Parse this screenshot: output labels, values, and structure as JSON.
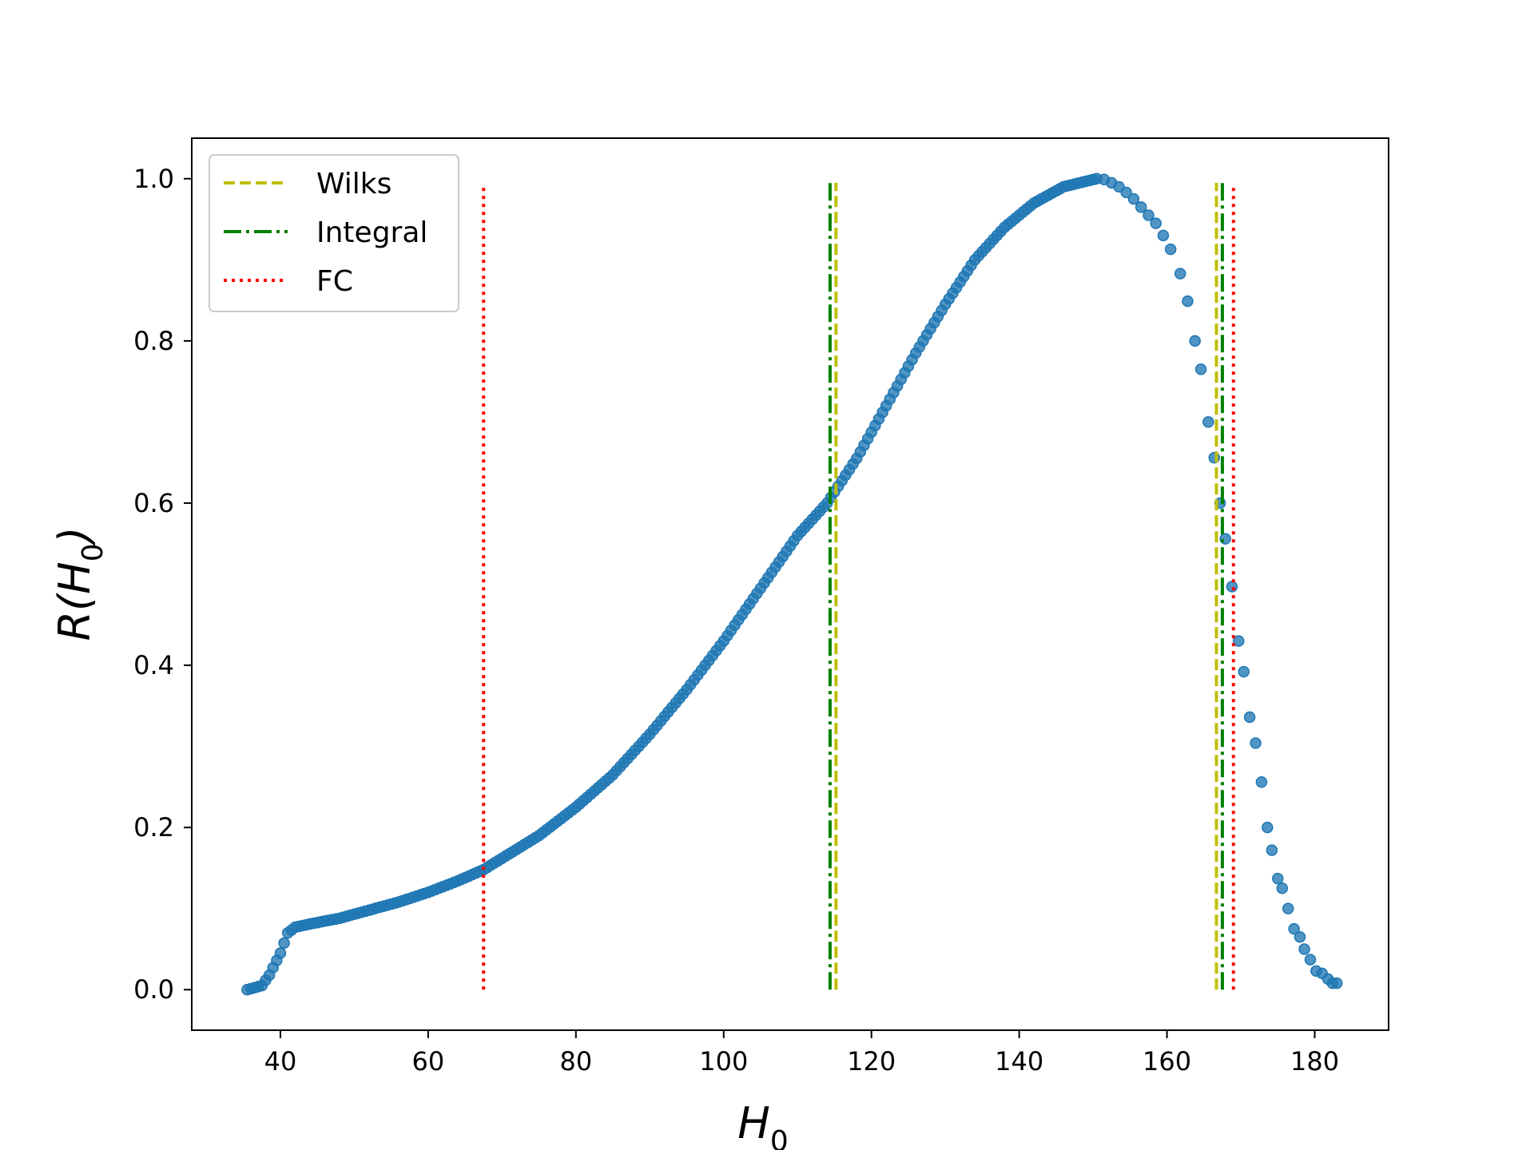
{
  "chart_data": {
    "type": "scatter",
    "title": "",
    "xlabel": "H",
    "xlabel_sub": "0",
    "ylabel_pre": "R(H",
    "ylabel_sub": "0",
    "ylabel_post": ")",
    "xlim": [
      28,
      190
    ],
    "ylim": [
      -0.05,
      1.05
    ],
    "xticks": [
      40,
      60,
      80,
      100,
      120,
      140,
      160,
      180
    ],
    "yticks": [
      0.0,
      0.2,
      0.4,
      0.6,
      0.8,
      1.0
    ],
    "xtick_labels": [
      "40",
      "60",
      "80",
      "100",
      "120",
      "140",
      "160",
      "180"
    ],
    "ytick_labels": [
      "0.0",
      "0.2",
      "0.4",
      "0.6",
      "0.8",
      "1.0"
    ],
    "grid": false,
    "legend_position": "top-left",
    "series": [
      {
        "name": "R(H0)",
        "kind": "points",
        "color": "#1f77b4",
        "x_start": 35.5,
        "x_end": 150.5,
        "x_step": 0.5,
        "anchors": [
          [
            35.5,
            0.0
          ],
          [
            37.5,
            0.005
          ],
          [
            38.5,
            0.018
          ],
          [
            40,
            0.045
          ],
          [
            41,
            0.07
          ],
          [
            42,
            0.077
          ],
          [
            44,
            0.081
          ],
          [
            48,
            0.088
          ],
          [
            52,
            0.098
          ],
          [
            56,
            0.108
          ],
          [
            60,
            0.12
          ],
          [
            64,
            0.134
          ],
          [
            67.5,
            0.148
          ],
          [
            70,
            0.162
          ],
          [
            75,
            0.19
          ],
          [
            80,
            0.225
          ],
          [
            85,
            0.265
          ],
          [
            90,
            0.315
          ],
          [
            95,
            0.37
          ],
          [
            100,
            0.43
          ],
          [
            105,
            0.495
          ],
          [
            110,
            0.56
          ],
          [
            114,
            0.6
          ],
          [
            118,
            0.655
          ],
          [
            122,
            0.72
          ],
          [
            126,
            0.785
          ],
          [
            130,
            0.845
          ],
          [
            134,
            0.9
          ],
          [
            138,
            0.94
          ],
          [
            142,
            0.97
          ],
          [
            146,
            0.99
          ],
          [
            150.5,
            1.0
          ]
        ],
        "tail": [
          [
            151.5,
            0.999
          ],
          [
            152.5,
            0.995
          ],
          [
            153.5,
            0.99
          ],
          [
            154.5,
            0.983
          ],
          [
            155.5,
            0.975
          ],
          [
            156.5,
            0.965
          ],
          [
            157.5,
            0.955
          ],
          [
            158.5,
            0.945
          ],
          [
            159.5,
            0.93
          ],
          [
            160.5,
            0.913
          ],
          [
            161.8,
            0.883
          ],
          [
            162.8,
            0.849
          ],
          [
            163.8,
            0.8
          ],
          [
            164.6,
            0.765
          ],
          [
            165.6,
            0.7
          ],
          [
            166.4,
            0.656
          ],
          [
            167.2,
            0.6
          ],
          [
            167.9,
            0.556
          ],
          [
            168.8,
            0.497
          ],
          [
            169.7,
            0.43
          ],
          [
            170.4,
            0.392
          ],
          [
            171.2,
            0.336
          ],
          [
            172,
            0.304
          ],
          [
            172.8,
            0.256
          ],
          [
            173.6,
            0.2
          ],
          [
            174.2,
            0.172
          ],
          [
            175,
            0.137
          ],
          [
            175.6,
            0.125
          ],
          [
            176.4,
            0.1
          ],
          [
            177.2,
            0.075
          ],
          [
            178,
            0.065
          ],
          [
            178.6,
            0.05
          ],
          [
            179.4,
            0.037
          ],
          [
            180.2,
            0.023
          ],
          [
            181,
            0.02
          ],
          [
            181.8,
            0.013
          ],
          [
            182.4,
            0.008
          ],
          [
            183,
            0.008
          ]
        ]
      }
    ],
    "vlines": [
      {
        "name": "Wilks",
        "style": "dashed",
        "color": "#bfbf00",
        "x": [
          115.2,
          166.7
        ],
        "ymin": 0.0,
        "ymax": 0.995
      },
      {
        "name": "Integral",
        "style": "dashdot",
        "color": "#008000",
        "x": [
          114.4,
          167.5
        ],
        "ymin": 0.0,
        "ymax": 0.995
      },
      {
        "name": "FC",
        "style": "dotted",
        "color": "#ff0000",
        "x": [
          67.5,
          169.0
        ],
        "ymin": 0.0,
        "ymax": 0.99
      }
    ],
    "legend": [
      "Wilks",
      "Integral",
      "FC"
    ]
  }
}
